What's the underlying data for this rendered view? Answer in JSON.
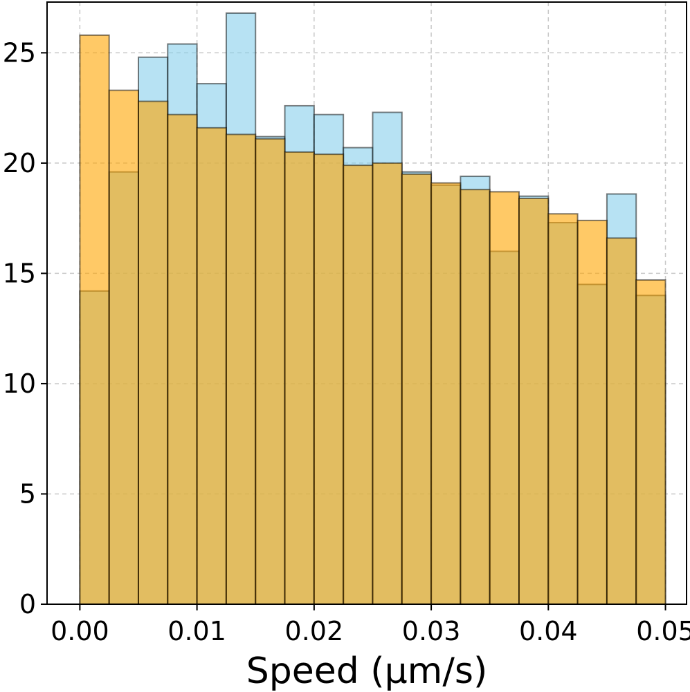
{
  "chart_data": {
    "type": "bar",
    "xlabel": "Speed (μm/s)",
    "ylabel": "",
    "xlim": [
      -0.0028,
      0.0518
    ],
    "ylim": [
      0,
      27.3
    ],
    "xticks": [
      0.0,
      0.01,
      0.02,
      0.03,
      0.04,
      0.05
    ],
    "xtick_labels": [
      "0.00",
      "0.01",
      "0.02",
      "0.03",
      "0.04",
      "0.05"
    ],
    "yticks": [
      0,
      5,
      10,
      15,
      20,
      25
    ],
    "ytick_labels": [
      "0",
      "5",
      "10",
      "15",
      "20",
      "25"
    ],
    "grid": true,
    "bin_edges": [
      0.0,
      0.0025,
      0.005,
      0.0075,
      0.01,
      0.0125,
      0.015,
      0.0175,
      0.02,
      0.0225,
      0.025,
      0.0275,
      0.03,
      0.0325,
      0.035,
      0.0375,
      0.04,
      0.0425,
      0.045,
      0.0475,
      0.05
    ],
    "series": [
      {
        "color": "#87CEEB",
        "alpha": 0.6,
        "values": [
          14.2,
          19.6,
          24.8,
          25.4,
          23.6,
          26.8,
          21.2,
          22.6,
          22.2,
          20.7,
          22.3,
          19.6,
          19.0,
          19.4,
          16.0,
          18.5,
          17.3,
          14.5,
          18.6,
          14.0
        ]
      },
      {
        "color": "#FFA500",
        "alpha": 0.6,
        "values": [
          25.8,
          23.3,
          22.8,
          22.2,
          21.6,
          21.3,
          21.1,
          20.5,
          20.4,
          19.9,
          20.0,
          19.5,
          19.1,
          18.8,
          18.7,
          18.4,
          17.7,
          17.4,
          16.6,
          14.7
        ]
      }
    ]
  }
}
